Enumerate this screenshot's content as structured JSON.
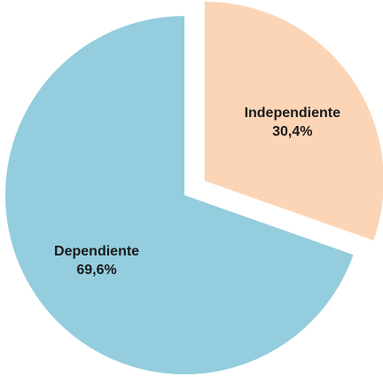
{
  "chart_data": {
    "type": "pie",
    "start_angle_deg": 0,
    "direction": "clockwise",
    "exploded_slice": "Independiente",
    "slices": [
      {
        "label": "Independiente",
        "value": 30.4,
        "value_text": "30,4%",
        "color": "#FBD5B5"
      },
      {
        "label": "Dependiente",
        "value": 69.6,
        "value_text": "69,6%",
        "color": "#94CDDD"
      }
    ]
  }
}
